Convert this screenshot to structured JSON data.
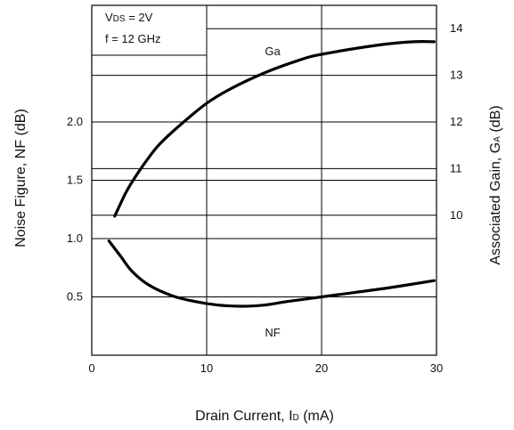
{
  "chart_data": {
    "type": "line",
    "x_axis": {
      "label_parts": [
        "Drain Current, I",
        "D",
        " (mA)"
      ],
      "min": 0,
      "max": 30,
      "ticks": [
        "0",
        "10",
        "20",
        "30"
      ]
    },
    "y_left": {
      "label": "Noise Figure, NF (dB)",
      "min": 0,
      "max": 3.0,
      "ticks": [
        {
          "value": 0.5,
          "label": "0.5"
        },
        {
          "value": 1.0,
          "label": "1.0"
        },
        {
          "value": 1.5,
          "label": "1.5"
        },
        {
          "value": 2.0,
          "label": "2.0"
        }
      ]
    },
    "y_right": {
      "label_parts": [
        "Associated Gain, G",
        "A",
        " (dB)"
      ],
      "min": 7,
      "max": 14.5,
      "ticks": [
        {
          "value": 10,
          "label": "10"
        },
        {
          "value": 11,
          "label": "11"
        },
        {
          "value": 12,
          "label": "12"
        },
        {
          "value": 13,
          "label": "13"
        },
        {
          "value": 14,
          "label": "14"
        }
      ]
    },
    "conditions": {
      "line1_parts": [
        "V",
        "DS",
        " = 2V"
      ],
      "line2": "f = 12 GHz"
    },
    "grid": true,
    "series": [
      {
        "name": "Ga",
        "axis": "right",
        "x": [
          2.0,
          3.0,
          4.0,
          5.0,
          6.0,
          8.0,
          10.0,
          12.0,
          15.0,
          18.0,
          20.0,
          25.0,
          28.0,
          29.8
        ],
        "y": [
          9.98,
          10.5,
          10.9,
          11.25,
          11.55,
          12.0,
          12.4,
          12.7,
          13.05,
          13.32,
          13.45,
          13.65,
          13.72,
          13.72
        ]
      },
      {
        "name": "NF",
        "axis": "left",
        "x": [
          1.5,
          2.5,
          3.5,
          5.0,
          7.0,
          9.0,
          11.0,
          13.0,
          15.0,
          17.0,
          20.0,
          23.0,
          26.0,
          29.8
        ],
        "y": [
          0.98,
          0.85,
          0.72,
          0.6,
          0.51,
          0.46,
          0.43,
          0.42,
          0.43,
          0.46,
          0.5,
          0.54,
          0.58,
          0.64
        ]
      }
    ]
  }
}
